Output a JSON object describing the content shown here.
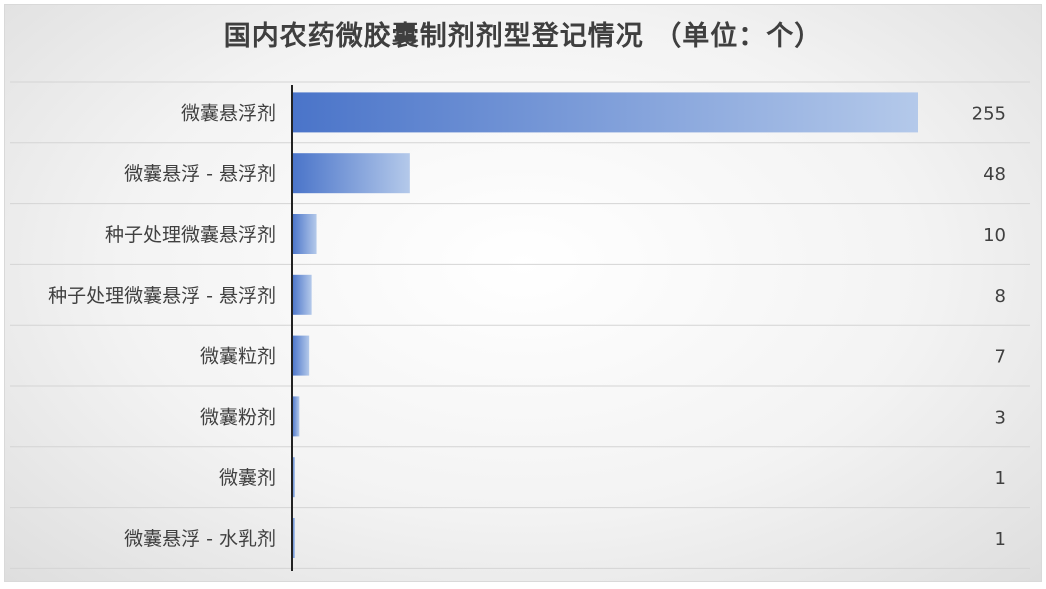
{
  "chart_data": {
    "type": "bar",
    "orientation": "horizontal",
    "title": "国内农药微胶囊制剂剂型登记情况 （单位：个）",
    "categories": [
      "微囊悬浮剂",
      "微囊悬浮 - 悬浮剂",
      "种子处理微囊悬浮剂",
      "种子处理微囊悬浮 - 悬浮剂",
      "微囊粒剂",
      "微囊粉剂",
      "微囊剂",
      "微囊悬浮 - 水乳剂"
    ],
    "values": [
      255,
      48,
      10,
      8,
      7,
      3,
      1,
      1
    ],
    "xlim": [
      0,
      255
    ],
    "grid": true,
    "legend": "none",
    "bar_color_start": "#4a74c9",
    "bar_color_end": "#b4c9ea"
  }
}
